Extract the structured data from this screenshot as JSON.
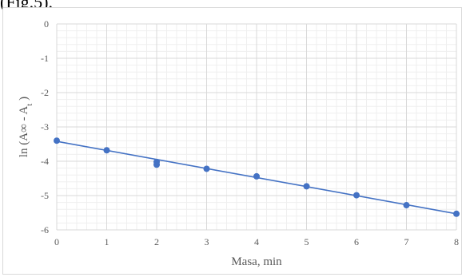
{
  "caption": "(Fig.5).",
  "chart_data": {
    "type": "scatter",
    "title": "",
    "xlabel": "Masa, min",
    "ylabel_main": "ln (A∞ - A",
    "ylabel_sub": "t",
    "ylabel_tail": " )",
    "xlim": [
      0,
      8
    ],
    "ylim": [
      -6,
      0
    ],
    "x_ticks": [
      "0",
      "1",
      "2",
      "3",
      "4",
      "5",
      "6",
      "7",
      "8"
    ],
    "y_ticks": [
      "0",
      "-1",
      "-2",
      "-3",
      "-4",
      "-5",
      "-6"
    ],
    "grid": true,
    "series": [
      {
        "x": [
          0,
          1,
          2,
          2,
          3,
          4,
          5,
          6,
          7,
          8
        ],
        "y": [
          -3.4,
          -3.68,
          -4.02,
          -4.1,
          -4.22,
          -4.44,
          -4.73,
          -4.99,
          -5.28,
          -5.53
        ],
        "color": "#4472c4"
      }
    ],
    "trendline": {
      "x": [
        0,
        8
      ],
      "y": [
        -3.42,
        -5.53
      ],
      "color": "#4472c4"
    }
  }
}
